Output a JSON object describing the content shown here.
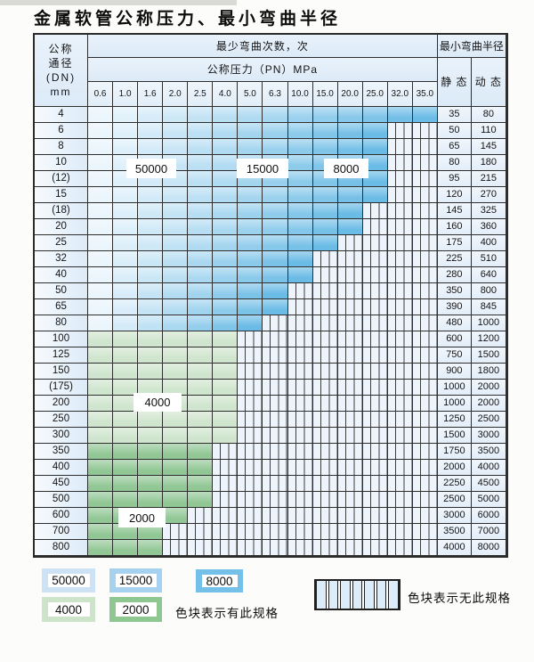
{
  "title": "金属软管公称压力、最小弯曲半径",
  "table": {
    "corner": {
      "line1": "公称",
      "line2": "通径",
      "line3": "(DN)",
      "line4": "mm"
    },
    "bend_cycles_header": "最少弯曲次数，次",
    "pressure_header": "公称压力（PN）MPa",
    "radius_header": "最小弯曲半径",
    "static_header": "静 态",
    "dynamic_header": "动 态",
    "pressures": [
      "0.6",
      "1.0",
      "1.6",
      "2.0",
      "2.5",
      "4.0",
      "5.0",
      "6.3",
      "10.0",
      "15.0",
      "20.0",
      "25.0",
      "32.0",
      "35.0"
    ],
    "rows": [
      {
        "dn": "4",
        "series": "blue",
        "available_through_pn": "35.0",
        "static": "35",
        "dynamic": "80"
      },
      {
        "dn": "6",
        "series": "blue",
        "available_through_pn": "25.0",
        "static": "50",
        "dynamic": "110"
      },
      {
        "dn": "8",
        "series": "blue",
        "available_through_pn": "25.0",
        "static": "65",
        "dynamic": "145"
      },
      {
        "dn": "10",
        "series": "blue",
        "available_through_pn": "25.0",
        "static": "80",
        "dynamic": "180"
      },
      {
        "dn": "(12)",
        "series": "blue",
        "available_through_pn": "25.0",
        "static": "95",
        "dynamic": "215"
      },
      {
        "dn": "15",
        "series": "blue",
        "available_through_pn": "25.0",
        "static": "120",
        "dynamic": "270"
      },
      {
        "dn": "(18)",
        "series": "blue",
        "available_through_pn": "20.0",
        "static": "145",
        "dynamic": "325"
      },
      {
        "dn": "20",
        "series": "blue",
        "available_through_pn": "20.0",
        "static": "160",
        "dynamic": "360"
      },
      {
        "dn": "25",
        "series": "blue",
        "available_through_pn": "15.0",
        "static": "175",
        "dynamic": "400"
      },
      {
        "dn": "32",
        "series": "blue",
        "available_through_pn": "10.0",
        "static": "225",
        "dynamic": "510"
      },
      {
        "dn": "40",
        "series": "blue",
        "available_through_pn": "10.0",
        "static": "280",
        "dynamic": "640"
      },
      {
        "dn": "50",
        "series": "blue",
        "available_through_pn": "6.3",
        "static": "350",
        "dynamic": "800"
      },
      {
        "dn": "65",
        "series": "blue",
        "available_through_pn": "6.3",
        "static": "390",
        "dynamic": "845"
      },
      {
        "dn": "80",
        "series": "blue",
        "available_through_pn": "5.0",
        "static": "480",
        "dynamic": "1000"
      },
      {
        "dn": "100",
        "series": "green_4000",
        "available_through_pn": "4.0",
        "static": "600",
        "dynamic": "1200"
      },
      {
        "dn": "125",
        "series": "green_4000",
        "available_through_pn": "4.0",
        "static": "750",
        "dynamic": "1500"
      },
      {
        "dn": "150",
        "series": "green_4000",
        "available_through_pn": "4.0",
        "static": "900",
        "dynamic": "1800"
      },
      {
        "dn": "(175)",
        "series": "green_4000",
        "available_through_pn": "4.0",
        "static": "1000",
        "dynamic": "2000"
      },
      {
        "dn": "200",
        "series": "green_4000",
        "available_through_pn": "4.0",
        "static": "1000",
        "dynamic": "2000"
      },
      {
        "dn": "250",
        "series": "green_4000",
        "available_through_pn": "4.0",
        "static": "1250",
        "dynamic": "2500"
      },
      {
        "dn": "300",
        "series": "green_4000",
        "available_through_pn": "4.0",
        "static": "1500",
        "dynamic": "3000"
      },
      {
        "dn": "350",
        "series": "green_2000",
        "available_through_pn": "2.5",
        "static": "1750",
        "dynamic": "3500"
      },
      {
        "dn": "400",
        "series": "green_2000",
        "available_through_pn": "2.5",
        "static": "2000",
        "dynamic": "4000"
      },
      {
        "dn": "450",
        "series": "green_2000",
        "available_through_pn": "2.5",
        "static": "2250",
        "dynamic": "4500"
      },
      {
        "dn": "500",
        "series": "green_2000",
        "available_through_pn": "2.5",
        "static": "2500",
        "dynamic": "5000"
      },
      {
        "dn": "600",
        "series": "green_2000",
        "available_through_pn": "2.0",
        "static": "3000",
        "dynamic": "6000"
      },
      {
        "dn": "700",
        "series": "green_2000",
        "available_through_pn": "1.6",
        "static": "3500",
        "dynamic": "7000"
      },
      {
        "dn": "800",
        "series": "green_2000",
        "available_through_pn": "1.6",
        "static": "4000",
        "dynamic": "8000"
      }
    ]
  },
  "region_labels": [
    {
      "text": "50000"
    },
    {
      "text": "15000"
    },
    {
      "text": "8000"
    },
    {
      "text": "4000"
    },
    {
      "text": "2000"
    }
  ],
  "legend": {
    "items": [
      {
        "label": "50000",
        "color": "#cde3f5"
      },
      {
        "label": "15000",
        "color": "#a6d2ef"
      },
      {
        "label": "8000",
        "color": "#74c0e9"
      },
      {
        "label": "4000",
        "color": "#cde4cb"
      },
      {
        "label": "2000",
        "color": "#8ec792"
      }
    ],
    "has_spec_text": "色块表示有此规格",
    "no_spec_text": "色块表示无此规格",
    "no_spec_swatch_cells": 7
  },
  "colors": {
    "blue_gradient_start": "#eaf5fc",
    "blue_gradient_end": "#6abbe5",
    "green_4000": "#cfe5cd",
    "green_2000": "#91c795",
    "hatch_bg": "#eef4fb",
    "grid_line": "#2e2e2e"
  }
}
